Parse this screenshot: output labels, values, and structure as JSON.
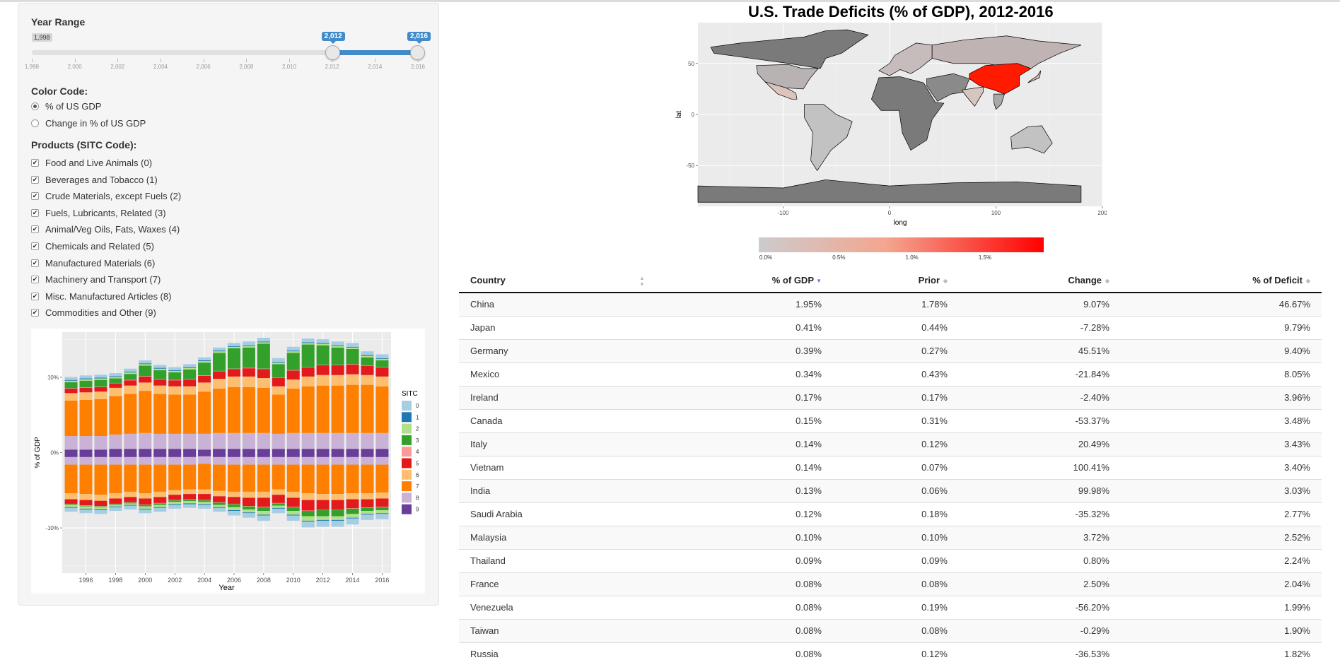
{
  "sidebar": {
    "year_range": {
      "label": "Year Range",
      "min_label": "1,998",
      "from_label": "2,012",
      "to_label": "2,016",
      "from": 2012,
      "to": 2016,
      "min": 1998,
      "max": 2016,
      "ticks": [
        "1,998",
        "2,000",
        "2,002",
        "2,004",
        "2,006",
        "2,008",
        "2,010",
        "2,012",
        "2,014",
        "2,016"
      ]
    },
    "color_code": {
      "label": "Color Code:",
      "options": [
        {
          "label": "% of US GDP",
          "selected": true
        },
        {
          "label": "Change in % of US GDP",
          "selected": false
        }
      ]
    },
    "products": {
      "label": "Products (SITC Code):",
      "items": [
        {
          "label": "Food and Live Animals (0)",
          "checked": true
        },
        {
          "label": "Beverages and Tobacco (1)",
          "checked": true
        },
        {
          "label": "Crude Materials, except Fuels (2)",
          "checked": true
        },
        {
          "label": "Fuels, Lubricants, Related (3)",
          "checked": true
        },
        {
          "label": "Animal/Veg Oils, Fats, Waxes (4)",
          "checked": true
        },
        {
          "label": "Chemicals and Related (5)",
          "checked": true
        },
        {
          "label": "Manufactured Materials (6)",
          "checked": true
        },
        {
          "label": "Machinery and Transport (7)",
          "checked": true
        },
        {
          "label": "Misc. Manufactured Articles (8)",
          "checked": true
        },
        {
          "label": "Commodities and Other (9)",
          "checked": true
        }
      ]
    }
  },
  "chart_data": [
    {
      "type": "bar",
      "stacked": true,
      "diverging": true,
      "xlabel": "Year",
      "ylabel": "% of GDP",
      "ylim": [
        -16,
        16
      ],
      "yticks": [
        "10%",
        "0%",
        "-10%"
      ],
      "xticks": [
        "1996",
        "1998",
        "2000",
        "2002",
        "2004",
        "2006",
        "2008",
        "2010",
        "2012",
        "2014",
        "2016"
      ],
      "legend_title": "SITC",
      "legend_position": "right",
      "legend": [
        "0",
        "1",
        "2",
        "3",
        "4",
        "5",
        "6",
        "7",
        "8",
        "9"
      ],
      "colors": [
        "#a6cee3",
        "#1f78b4",
        "#b2df8a",
        "#33a02c",
        "#fb9a99",
        "#e31a1c",
        "#fdbf6f",
        "#ff7f00",
        "#cab2d6",
        "#6a3d9a"
      ],
      "categories": [
        1995,
        1996,
        1997,
        1998,
        1999,
        2000,
        2001,
        2002,
        2003,
        2004,
        2005,
        2006,
        2007,
        2008,
        2009,
        2010,
        2011,
        2012,
        2013,
        2014,
        2015,
        2016
      ],
      "positive_series": [
        {
          "name": "9",
          "values": [
            0.4,
            0.4,
            0.4,
            0.5,
            0.5,
            0.5,
            0.5,
            0.5,
            0.5,
            0.4,
            0.5,
            0.5,
            0.5,
            0.5,
            0.5,
            0.5,
            0.5,
            0.5,
            0.5,
            0.5,
            0.5,
            0.5
          ]
        },
        {
          "name": "8",
          "values": [
            1.8,
            1.8,
            1.8,
            1.9,
            2.0,
            2.1,
            2.0,
            2.0,
            2.0,
            2.1,
            2.1,
            2.1,
            2.1,
            2.1,
            2.0,
            2.1,
            2.1,
            2.1,
            2.1,
            2.1,
            2.1,
            2.1
          ]
        },
        {
          "name": "7",
          "values": [
            4.7,
            4.8,
            4.9,
            5.1,
            5.3,
            5.6,
            5.3,
            5.2,
            5.2,
            5.6,
            5.9,
            6.1,
            6.1,
            6.0,
            5.2,
            5.9,
            6.2,
            6.3,
            6.3,
            6.4,
            6.4,
            6.2
          ]
        },
        {
          "name": "6",
          "values": [
            1.0,
            1.0,
            1.0,
            1.1,
            1.1,
            1.1,
            1.1,
            1.1,
            1.1,
            1.2,
            1.3,
            1.4,
            1.4,
            1.3,
            1.1,
            1.2,
            1.3,
            1.4,
            1.4,
            1.4,
            1.3,
            1.3
          ]
        },
        {
          "name": "5",
          "values": [
            0.6,
            0.6,
            0.6,
            0.6,
            0.7,
            0.8,
            0.8,
            0.8,
            0.9,
            0.9,
            1.0,
            1.0,
            1.1,
            1.2,
            1.1,
            1.2,
            1.2,
            1.3,
            1.3,
            1.3,
            1.2,
            1.2
          ]
        },
        {
          "name": "4",
          "values": [
            0.05,
            0.05,
            0.05,
            0.05,
            0.05,
            0.05,
            0.05,
            0.05,
            0.05,
            0.05,
            0.05,
            0.05,
            0.05,
            0.05,
            0.05,
            0.05,
            0.05,
            0.05,
            0.05,
            0.05,
            0.05,
            0.05
          ]
        },
        {
          "name": "3",
          "values": [
            0.8,
            0.9,
            0.9,
            0.6,
            0.8,
            1.4,
            1.2,
            1.0,
            1.3,
            1.7,
            2.4,
            2.7,
            2.7,
            3.3,
            1.8,
            2.3,
            3.0,
            2.6,
            2.3,
            2.0,
            1.1,
            0.9
          ]
        },
        {
          "name": "2",
          "values": [
            0.2,
            0.2,
            0.2,
            0.2,
            0.2,
            0.2,
            0.2,
            0.2,
            0.2,
            0.2,
            0.2,
            0.2,
            0.2,
            0.2,
            0.2,
            0.2,
            0.2,
            0.2,
            0.2,
            0.2,
            0.2,
            0.2
          ]
        },
        {
          "name": "1",
          "values": [
            0.1,
            0.1,
            0.1,
            0.1,
            0.1,
            0.1,
            0.1,
            0.1,
            0.1,
            0.1,
            0.1,
            0.1,
            0.1,
            0.1,
            0.1,
            0.1,
            0.1,
            0.1,
            0.1,
            0.1,
            0.1,
            0.1
          ]
        },
        {
          "name": "0",
          "values": [
            0.4,
            0.4,
            0.4,
            0.4,
            0.4,
            0.4,
            0.4,
            0.4,
            0.4,
            0.4,
            0.4,
            0.4,
            0.5,
            0.5,
            0.5,
            0.5,
            0.5,
            0.5,
            0.5,
            0.5,
            0.5,
            0.5
          ]
        }
      ],
      "negative_series": [
        {
          "name": "9",
          "values": [
            -0.6,
            -0.6,
            -0.6,
            -0.6,
            -0.6,
            -0.6,
            -0.6,
            -0.6,
            -0.6,
            -0.5,
            -0.6,
            -0.6,
            -0.6,
            -0.6,
            -0.6,
            -0.6,
            -0.6,
            -0.6,
            -0.6,
            -0.6,
            -0.6,
            -0.6
          ]
        },
        {
          "name": "8",
          "values": [
            -1.0,
            -1.0,
            -1.0,
            -1.0,
            -1.0,
            -1.0,
            -1.0,
            -1.0,
            -1.0,
            -1.0,
            -1.0,
            -1.0,
            -1.0,
            -1.0,
            -1.0,
            -1.0,
            -1.0,
            -1.0,
            -1.0,
            -1.0,
            -1.0,
            -1.0
          ]
        },
        {
          "name": "7",
          "values": [
            -3.8,
            -3.9,
            -4.0,
            -3.8,
            -3.6,
            -3.8,
            -3.6,
            -3.4,
            -3.3,
            -3.4,
            -3.5,
            -3.6,
            -3.6,
            -3.6,
            -3.3,
            -3.6,
            -3.8,
            -3.9,
            -3.9,
            -3.8,
            -3.8,
            -3.7
          ]
        },
        {
          "name": "6",
          "values": [
            -0.8,
            -0.8,
            -0.8,
            -0.7,
            -0.7,
            -0.7,
            -0.7,
            -0.6,
            -0.6,
            -0.6,
            -0.7,
            -0.7,
            -0.8,
            -0.8,
            -0.7,
            -0.8,
            -0.9,
            -0.8,
            -0.8,
            -0.8,
            -0.8,
            -0.8
          ]
        },
        {
          "name": "5",
          "values": [
            -0.6,
            -0.7,
            -0.7,
            -0.7,
            -0.7,
            -0.8,
            -0.8,
            -0.7,
            -0.7,
            -0.8,
            -0.8,
            -0.9,
            -1.1,
            -1.2,
            -1.1,
            -1.2,
            -1.4,
            -1.3,
            -1.3,
            -1.2,
            -1.1,
            -1.1
          ]
        },
        {
          "name": "4",
          "values": [
            -0.05,
            -0.05,
            -0.05,
            -0.05,
            -0.05,
            -0.05,
            -0.05,
            -0.05,
            -0.05,
            -0.05,
            -0.05,
            -0.05,
            -0.05,
            -0.05,
            -0.05,
            -0.05,
            -0.05,
            -0.05,
            -0.05,
            -0.05,
            -0.05,
            -0.05
          ]
        },
        {
          "name": "3",
          "values": [
            -0.1,
            -0.1,
            -0.1,
            -0.1,
            -0.1,
            -0.2,
            -0.2,
            -0.2,
            -0.2,
            -0.2,
            -0.3,
            -0.4,
            -0.4,
            -0.5,
            -0.3,
            -0.5,
            -0.7,
            -0.8,
            -0.8,
            -0.7,
            -0.4,
            -0.4
          ]
        },
        {
          "name": "2",
          "values": [
            -0.3,
            -0.3,
            -0.3,
            -0.2,
            -0.2,
            -0.3,
            -0.3,
            -0.3,
            -0.3,
            -0.3,
            -0.3,
            -0.4,
            -0.4,
            -0.5,
            -0.3,
            -0.5,
            -0.6,
            -0.5,
            -0.5,
            -0.5,
            -0.4,
            -0.4
          ]
        },
        {
          "name": "1",
          "values": [
            -0.1,
            -0.1,
            -0.1,
            -0.1,
            -0.1,
            -0.1,
            -0.1,
            -0.1,
            -0.1,
            -0.1,
            -0.1,
            -0.1,
            -0.1,
            -0.1,
            -0.1,
            -0.1,
            -0.1,
            -0.1,
            -0.1,
            -0.1,
            -0.1,
            -0.1
          ]
        },
        {
          "name": "0",
          "values": [
            -0.5,
            -0.5,
            -0.5,
            -0.5,
            -0.5,
            -0.5,
            -0.5,
            -0.5,
            -0.5,
            -0.5,
            -0.5,
            -0.6,
            -0.6,
            -0.7,
            -0.6,
            -0.7,
            -0.8,
            -0.8,
            -0.8,
            -0.8,
            -0.7,
            -0.7
          ]
        }
      ]
    },
    {
      "type": "map",
      "title": "U.S. Trade Deficits (% of GDP), 2012-2016",
      "xlabel": "long",
      "ylabel": "lat",
      "xticks": [
        "-100",
        "0",
        "100",
        "200"
      ],
      "yticks": [
        "50",
        "0",
        "-50"
      ],
      "xlim": [
        -180,
        200
      ],
      "ylim": [
        -90,
        90
      ],
      "colorbar_ticks": [
        "0.0%",
        "0.5%",
        "1.0%",
        "1.5%"
      ],
      "colorbar_range": [
        0,
        1.95
      ],
      "colorbar_colors": [
        "#cccccc",
        "#ff0000"
      ]
    }
  ],
  "table": {
    "columns": [
      "Country",
      "% of GDP",
      "Prior",
      "Change",
      "% of Deficit"
    ],
    "sorted_column": 1,
    "rows": [
      [
        "China",
        "1.95%",
        "1.78%",
        "9.07%",
        "46.67%"
      ],
      [
        "Japan",
        "0.41%",
        "0.44%",
        "-7.28%",
        "9.79%"
      ],
      [
        "Germany",
        "0.39%",
        "0.27%",
        "45.51%",
        "9.40%"
      ],
      [
        "Mexico",
        "0.34%",
        "0.43%",
        "-21.84%",
        "8.05%"
      ],
      [
        "Ireland",
        "0.17%",
        "0.17%",
        "-2.40%",
        "3.96%"
      ],
      [
        "Canada",
        "0.15%",
        "0.31%",
        "-53.37%",
        "3.48%"
      ],
      [
        "Italy",
        "0.14%",
        "0.12%",
        "20.49%",
        "3.43%"
      ],
      [
        "Vietnam",
        "0.14%",
        "0.07%",
        "100.41%",
        "3.40%"
      ],
      [
        "India",
        "0.13%",
        "0.06%",
        "99.98%",
        "3.03%"
      ],
      [
        "Saudi Arabia",
        "0.12%",
        "0.18%",
        "-35.32%",
        "2.77%"
      ],
      [
        "Malaysia",
        "0.10%",
        "0.10%",
        "3.72%",
        "2.52%"
      ],
      [
        "Thailand",
        "0.09%",
        "0.09%",
        "0.80%",
        "2.24%"
      ],
      [
        "France",
        "0.08%",
        "0.08%",
        "2.50%",
        "2.04%"
      ],
      [
        "Venezuela",
        "0.08%",
        "0.19%",
        "-56.20%",
        "1.99%"
      ],
      [
        "Taiwan",
        "0.08%",
        "0.08%",
        "-0.29%",
        "1.90%"
      ],
      [
        "Russia",
        "0.08%",
        "0.12%",
        "-36.53%",
        "1.82%"
      ]
    ]
  }
}
